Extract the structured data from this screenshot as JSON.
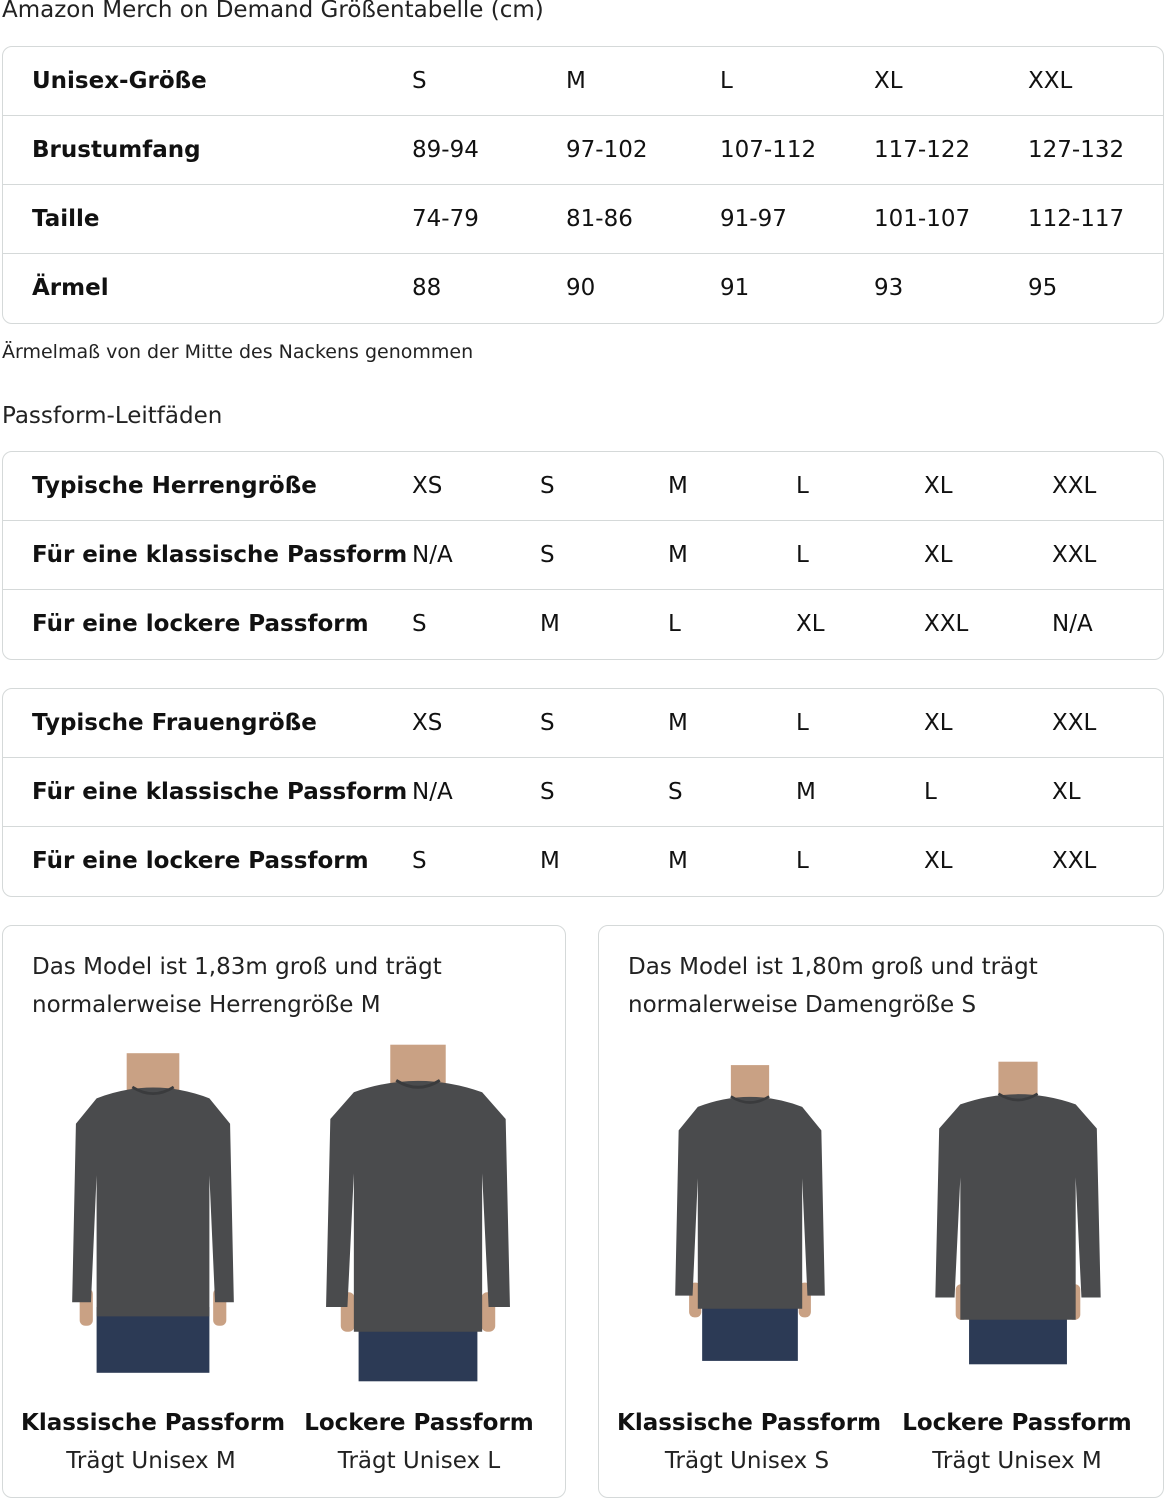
{
  "title": "Amazon Merch on Demand Größentabelle (cm)",
  "unisex_table": {
    "rows": [
      {
        "label": "Unisex-Größe",
        "values": [
          "S",
          "M",
          "L",
          "XL",
          "XXL"
        ]
      },
      {
        "label": "Brustumfang",
        "values": [
          "89-94",
          "97-102",
          "107-112",
          "117-122",
          "127-132"
        ]
      },
      {
        "label": "Taille",
        "values": [
          "74-79",
          "81-86",
          "91-97",
          "101-107",
          "112-117"
        ]
      },
      {
        "label": "Ärmel",
        "values": [
          "88",
          "90",
          "91",
          "93",
          "95"
        ]
      }
    ]
  },
  "sleeve_note": "Ärmelmaß von der Mitte des Nackens genommen",
  "fit_heading": "Passform-Leitfäden",
  "men_table": {
    "rows": [
      {
        "label": "Typische Herrengröße",
        "values": [
          "XS",
          "S",
          "M",
          "L",
          "XL",
          "XXL"
        ]
      },
      {
        "label": "Für eine klassische Passform",
        "values": [
          "N/A",
          "S",
          "M",
          "L",
          "XL",
          "XXL"
        ]
      },
      {
        "label": "Für eine lockere Passform",
        "values": [
          "S",
          "M",
          "L",
          "XL",
          "XXL",
          "N/A"
        ]
      }
    ]
  },
  "women_table": {
    "rows": [
      {
        "label": "Typische Frauengröße",
        "values": [
          "XS",
          "S",
          "M",
          "L",
          "XL",
          "XXL"
        ]
      },
      {
        "label": "Für eine klassische Passform",
        "values": [
          "N/A",
          "S",
          "S",
          "M",
          "L",
          "XL"
        ]
      },
      {
        "label": "Für eine lockere Passform",
        "values": [
          "S",
          "M",
          "M",
          "L",
          "XL",
          "XXL"
        ]
      }
    ]
  },
  "cards": [
    {
      "text_line1": "Das Model ist 1,83m groß und trägt",
      "text_line2": "normalerweise Herrengröße M",
      "photos": [
        {
          "fit": "Klassische Passform",
          "size": "Trägt Unisex M"
        },
        {
          "fit": "Lockere Passform",
          "size": "Trägt Unisex L"
        }
      ]
    },
    {
      "text_line1": "Das Model ist 1,80m groß und trägt",
      "text_line2": "normalerweise Damengröße S",
      "photos": [
        {
          "fit": "Klassische Passform",
          "size": "Trägt Unisex S"
        },
        {
          "fit": "Lockere Passform",
          "size": "Trägt Unisex M"
        }
      ]
    }
  ],
  "colors": {
    "shirt": "#4a4b4d",
    "jeans": "#2c3a55",
    "border": "#d5d9d9"
  }
}
